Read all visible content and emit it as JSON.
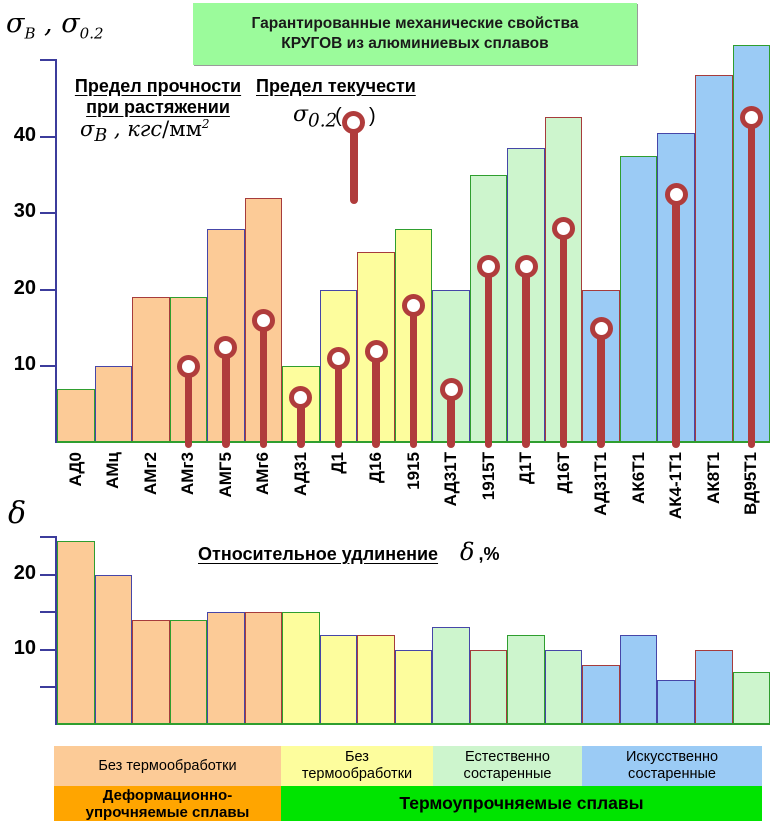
{
  "title": {
    "line1": "Гарантированные механические свойства",
    "line2": "КРУГОВ из алюминиевых сплавов"
  },
  "top_header": {
    "sigma1": "σ",
    "sub1": "B",
    "sep": " , ",
    "sigma2": "σ",
    "sub2": "0.2"
  },
  "strength_label": {
    "line1": "Предел прочности",
    "line2": "при растяжении",
    "sigma": "σ",
    "sub": "B",
    "units_comma": " , ",
    "units_italic": "кгс",
    "units_plain": "/мм",
    "sup": "2"
  },
  "yield_label": {
    "title": "Предел текучести",
    "sigma": "σ",
    "sub": "0.2",
    "paren_open": "(",
    "paren_close": ")"
  },
  "elongation_label": {
    "title": "Относительное удлинение",
    "delta": "δ",
    "units": ",%"
  },
  "delta_axis_label": "δ",
  "colors": {
    "orange": "#fccb97",
    "yellow": "#fdfd9d",
    "light_green": "#cdf5cd",
    "blue": "#9bcbf5",
    "legend_orange": "#ffa500",
    "legend_green": "#00e400",
    "lollipop_red": "#b03c3c",
    "axis_navy": "#3c3c9c",
    "baseline_green": "#2f9e2f",
    "stroke_green": "#2f9e2f",
    "stroke_navy": "#4646a8",
    "stroke_red": "#a63c3c",
    "title_bg": "#9bfb9b"
  },
  "chart_data": [
    {
      "type": "bar",
      "title": "Предел прочности при растяжении σB, кгс/мм² (столбцы) и предел текучести σ0.2 (маркеры)",
      "categories": [
        "АД0",
        "АМц",
        "АМг2",
        "АМг3",
        "АМГ5",
        "АМг6",
        "АД31",
        "Д1",
        "Д16",
        "1915",
        "АД31Т",
        "1915Т",
        "Д1Т",
        "Д16Т",
        "АД31Т1",
        "АК6Т1",
        "АК4-1Т1",
        "АК8Т1",
        "ВД95Т1"
      ],
      "series": [
        {
          "name": "Предел прочности σB, кгс/мм²",
          "marker": "bar",
          "values": [
            7,
            10,
            19,
            19,
            28,
            32,
            10,
            20,
            25,
            28,
            20,
            35,
            38.5,
            42.5,
            20,
            37.5,
            40.5,
            48,
            52
          ]
        },
        {
          "name": "Предел текучести σ0.2, кгс/мм²",
          "marker": "lollipop",
          "values": [
            null,
            null,
            null,
            10,
            12.5,
            16,
            6,
            11,
            12,
            18,
            7,
            23,
            23,
            28,
            15,
            null,
            32.5,
            null,
            42.5
          ]
        }
      ],
      "ylabel": "σB , σ0.2",
      "ylim": [
        0,
        50
      ],
      "yticks_labeled": [
        10,
        20,
        30,
        40
      ],
      "yticks_all": [
        10,
        20,
        30,
        40,
        50
      ],
      "grid": false,
      "legend_position": "top",
      "bar_fills": [
        "orange",
        "orange",
        "orange",
        "orange",
        "orange",
        "orange",
        "yellow",
        "yellow",
        "yellow",
        "yellow",
        "light_green",
        "light_green",
        "light_green",
        "light_green",
        "blue",
        "blue",
        "blue",
        "blue",
        "blue"
      ],
      "bar_strokes": [
        "stroke_green",
        "stroke_navy",
        "stroke_red",
        "stroke_green",
        "stroke_navy",
        "stroke_red",
        "stroke_green",
        "stroke_navy",
        "stroke_red",
        "stroke_green",
        "stroke_navy",
        "stroke_green",
        "stroke_navy",
        "stroke_red",
        "stroke_red",
        "stroke_green",
        "stroke_navy",
        "stroke_red",
        "stroke_green"
      ]
    },
    {
      "type": "bar",
      "title": "Относительное удлинение δ, %",
      "categories": [
        "АД0",
        "АМц",
        "АМг2",
        "АМг3",
        "АМГ5",
        "АМг6",
        "АД31",
        "Д1",
        "Д16",
        "1915",
        "АД31Т",
        "1915Т",
        "Д1Т",
        "Д16Т",
        "АД31Т1",
        "АК6Т1",
        "АК4-1Т1",
        "АК8Т1",
        "ВД95Т1"
      ],
      "values": [
        24.5,
        20,
        14,
        14,
        15,
        15,
        15,
        12,
        12,
        10,
        13,
        10,
        12,
        10,
        8,
        12,
        6,
        10,
        7
      ],
      "ylabel": "δ",
      "ylim": [
        0,
        25
      ],
      "yticks_labeled": [
        10,
        20
      ],
      "yticks_all": [
        5,
        10,
        15,
        20,
        25
      ],
      "grid": false,
      "bar_fills": [
        "orange",
        "orange",
        "orange",
        "orange",
        "orange",
        "orange",
        "yellow",
        "yellow",
        "yellow",
        "yellow",
        "light_green",
        "light_green",
        "light_green",
        "light_green",
        "blue",
        "blue",
        "blue",
        "blue",
        "light_green"
      ],
      "bar_strokes": [
        "stroke_green",
        "stroke_navy",
        "stroke_red",
        "stroke_green",
        "stroke_navy",
        "stroke_red",
        "stroke_green",
        "stroke_navy",
        "stroke_red",
        "stroke_navy",
        "stroke_navy",
        "stroke_red",
        "stroke_green",
        "stroke_navy",
        "stroke_red",
        "stroke_navy",
        "stroke_navy",
        "stroke_red",
        "stroke_green"
      ]
    }
  ],
  "legend": {
    "row1": [
      {
        "lines": [
          "Без термообработки"
        ],
        "color": "orange"
      },
      {
        "lines": [
          "Без",
          "термообработки"
        ],
        "color": "yellow"
      },
      {
        "lines": [
          "Естественно",
          "состаренные"
        ],
        "color": "light_green"
      },
      {
        "lines": [
          "Искусственно",
          "состаренные"
        ],
        "color": "blue"
      }
    ],
    "row2": [
      {
        "lines": [
          "Деформационно-",
          "упрочняемые сплавы"
        ],
        "color": "legend_orange"
      },
      {
        "lines": [
          "Термоупрочняемые сплавы"
        ],
        "color": "legend_green"
      }
    ]
  }
}
